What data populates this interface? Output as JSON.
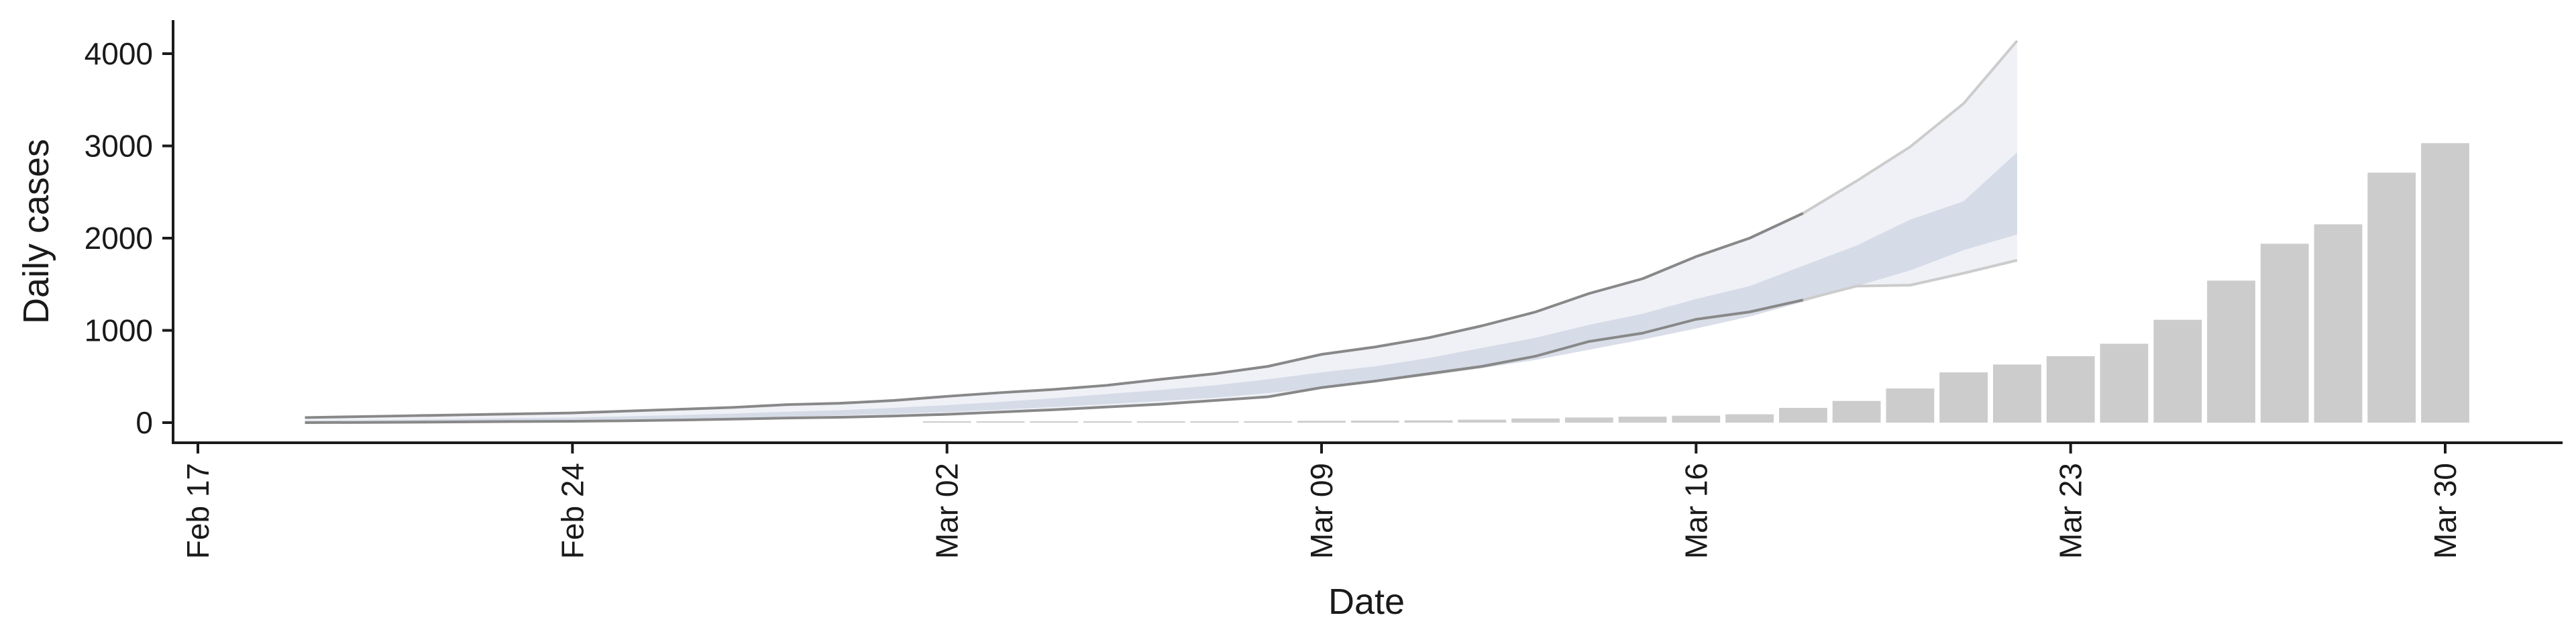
{
  "chart_data": {
    "type": "bar",
    "title": "",
    "xlabel": "Date",
    "ylabel": "Daily cases",
    "ylim": [
      -200,
      4200
    ],
    "y_ticks": [
      0,
      1000,
      2000,
      3000,
      4000
    ],
    "x_range": [
      "2020-02-17",
      "2020-04-01"
    ],
    "x_ticks": [
      {
        "date": "2020-02-17",
        "label": "Feb 17"
      },
      {
        "date": "2020-02-24",
        "label": "Feb 24"
      },
      {
        "date": "2020-03-02",
        "label": "Mar 02"
      },
      {
        "date": "2020-03-09",
        "label": "Mar 09"
      },
      {
        "date": "2020-03-16",
        "label": "Mar 16"
      },
      {
        "date": "2020-03-23",
        "label": "Mar 23"
      },
      {
        "date": "2020-03-30",
        "label": "Mar 30"
      }
    ],
    "grid": false,
    "bars": {
      "color": "#cccccc",
      "dates": [
        "2020-03-02",
        "2020-03-03",
        "2020-03-04",
        "2020-03-05",
        "2020-03-06",
        "2020-03-07",
        "2020-03-08",
        "2020-03-09",
        "2020-03-10",
        "2020-03-11",
        "2020-03-12",
        "2020-03-13",
        "2020-03-14",
        "2020-03-15",
        "2020-03-16",
        "2020-03-17",
        "2020-03-18",
        "2020-03-19",
        "2020-03-20",
        "2020-03-21",
        "2020-03-22",
        "2020-03-23",
        "2020-03-24",
        "2020-03-25",
        "2020-03-26",
        "2020-03-27",
        "2020-03-28",
        "2020-03-29",
        "2020-03-30"
      ],
      "values": [
        3,
        5,
        6,
        8,
        10,
        12,
        15,
        20,
        22,
        25,
        32,
        45,
        55,
        65,
        75,
        90,
        160,
        235,
        370,
        545,
        630,
        720,
        855,
        1115,
        1540,
        1940,
        2150,
        2710,
        3030
      ]
    },
    "projection": {
      "band_color": "#ccd3e2",
      "outer_line_color": "#888888",
      "dates": [
        "2020-02-19",
        "2020-02-20",
        "2020-02-21",
        "2020-02-22",
        "2020-02-23",
        "2020-02-24",
        "2020-02-25",
        "2020-02-26",
        "2020-02-27",
        "2020-02-28",
        "2020-02-29",
        "2020-03-01",
        "2020-03-02",
        "2020-03-03",
        "2020-03-04",
        "2020-03-05",
        "2020-03-06",
        "2020-03-07",
        "2020-03-08",
        "2020-03-09",
        "2020-03-10",
        "2020-03-11",
        "2020-03-12",
        "2020-03-13",
        "2020-03-14",
        "2020-03-15",
        "2020-03-16",
        "2020-03-17",
        "2020-03-18",
        "2020-03-19",
        "2020-03-20",
        "2020-03-21"
      ],
      "upper": [
        55,
        65,
        75,
        85,
        95,
        105,
        125,
        145,
        165,
        195,
        210,
        240,
        285,
        325,
        360,
        405,
        470,
        530,
        610,
        740,
        820,
        920,
        1050,
        1200,
        1400,
        1560,
        1800,
        2000,
        2270,
        2620,
        2990,
        3460
      ],
      "inner_upper": [
        20,
        25,
        32,
        40,
        48,
        55,
        68,
        82,
        98,
        118,
        135,
        160,
        190,
        225,
        265,
        310,
        355,
        405,
        470,
        545,
        610,
        700,
        810,
        920,
        1060,
        1180,
        1340,
        1480,
        1700,
        1920,
        2200,
        2400
      ],
      "inner_lower": [
        8,
        12,
        16,
        20,
        25,
        30,
        36,
        44,
        52,
        65,
        78,
        95,
        115,
        140,
        170,
        200,
        235,
        270,
        320,
        380,
        440,
        510,
        590,
        680,
        790,
        900,
        1020,
        1150,
        1310,
        1480,
        1650,
        1870
      ],
      "lower": [
        0,
        2,
        5,
        8,
        12,
        15,
        20,
        28,
        38,
        50,
        58,
        72,
        90,
        115,
        140,
        170,
        200,
        240,
        280,
        380,
        450,
        530,
        610,
        720,
        880,
        970,
        1120,
        1200,
        1330,
        1480,
        1490,
        1620
      ]
    },
    "forecast": {
      "line_color": "#cccccc",
      "dates": [
        "2020-03-18",
        "2020-03-19",
        "2020-03-20",
        "2020-03-21",
        "2020-03-22"
      ],
      "upper": [
        2000,
        2270,
        2620,
        2990,
        3460
      ],
      "lower": [
        1200,
        1330,
        1480,
        1490,
        1620
      ],
      "end_upper": 4140,
      "end_lower": 1760,
      "end_inner_upper": 2930,
      "end_inner_lower": 2040
    }
  }
}
